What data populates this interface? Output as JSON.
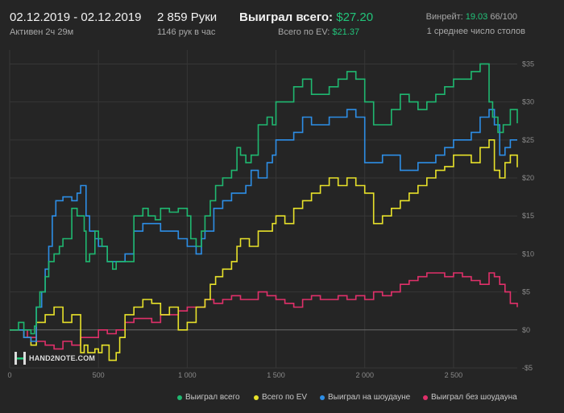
{
  "header": {
    "date_range": "02.12.2019 - 02.12.2019",
    "active": "Активен 2ч 29м",
    "hands_count": "2 859",
    "hands_label": "Руки",
    "hands_per_hour": "1146 рук в час",
    "won_total_label": "Выиграл всего:",
    "won_total_value": "$27.20",
    "ev_label": "Всего по EV:",
    "ev_value": "$21.37",
    "winrate_label": "Винрейт:",
    "winrate_value": "19.03",
    "winrate_suffix": "66/100",
    "avg_tables": "1 среднее число столов"
  },
  "logo": {
    "text": "HAND2NOTE.COM"
  },
  "colors": {
    "won_total": "#1fb870",
    "ev": "#e8e22a",
    "showdown": "#2d8ee6",
    "non_showdown": "#e0306a"
  },
  "chart_data": {
    "type": "line",
    "xlabel": "",
    "ylabel": "",
    "xlim": [
      0,
      2859
    ],
    "ylim": [
      -5,
      36
    ],
    "x_ticks": [
      0,
      500,
      1000,
      1500,
      2000,
      2500
    ],
    "x_tick_labels": [
      "0",
      "500",
      "1 000",
      "1 500",
      "2 000",
      "2 500"
    ],
    "y_ticks": [
      35,
      30,
      25,
      20,
      15,
      10,
      5,
      0,
      -5
    ],
    "y_tick_labels": [
      "$35",
      "$30",
      "$25",
      "$20",
      "$15",
      "$10",
      "$5",
      "$0",
      "-$5"
    ],
    "grid": true,
    "legend_position": "bottom-right",
    "series": [
      {
        "name": "Выиграл всего",
        "color": "#1fb870",
        "points": [
          [
            0,
            0
          ],
          [
            30,
            0
          ],
          [
            50,
            1
          ],
          [
            80,
            0
          ],
          [
            120,
            -0.5
          ],
          [
            140,
            0.5
          ],
          [
            150,
            3
          ],
          [
            170,
            5
          ],
          [
            200,
            7
          ],
          [
            220,
            9
          ],
          [
            250,
            10
          ],
          [
            280,
            11
          ],
          [
            300,
            12
          ],
          [
            350,
            16
          ],
          [
            380,
            15
          ],
          [
            420,
            13
          ],
          [
            430,
            9
          ],
          [
            450,
            10
          ],
          [
            480,
            13
          ],
          [
            500,
            12
          ],
          [
            520,
            11
          ],
          [
            550,
            9
          ],
          [
            580,
            8
          ],
          [
            600,
            9
          ],
          [
            650,
            9
          ],
          [
            700,
            15
          ],
          [
            750,
            16
          ],
          [
            780,
            15
          ],
          [
            820,
            14.5
          ],
          [
            850,
            16
          ],
          [
            900,
            15.5
          ],
          [
            950,
            16
          ],
          [
            1000,
            15
          ],
          [
            1020,
            12
          ],
          [
            1050,
            11
          ],
          [
            1080,
            13
          ],
          [
            1100,
            15
          ],
          [
            1130,
            17
          ],
          [
            1160,
            19
          ],
          [
            1200,
            20
          ],
          [
            1250,
            21
          ],
          [
            1280,
            24
          ],
          [
            1300,
            23
          ],
          [
            1330,
            22
          ],
          [
            1360,
            23
          ],
          [
            1400,
            27
          ],
          [
            1450,
            28
          ],
          [
            1480,
            27
          ],
          [
            1500,
            30
          ],
          [
            1550,
            30
          ],
          [
            1600,
            32
          ],
          [
            1650,
            33
          ],
          [
            1700,
            31
          ],
          [
            1750,
            31
          ],
          [
            1800,
            32
          ],
          [
            1850,
            33
          ],
          [
            1900,
            34
          ],
          [
            1950,
            33
          ],
          [
            2000,
            30
          ],
          [
            2050,
            27
          ],
          [
            2100,
            27
          ],
          [
            2150,
            29
          ],
          [
            2200,
            31
          ],
          [
            2250,
            30
          ],
          [
            2300,
            29
          ],
          [
            2350,
            30
          ],
          [
            2400,
            31
          ],
          [
            2450,
            32
          ],
          [
            2500,
            33
          ],
          [
            2550,
            33
          ],
          [
            2600,
            34
          ],
          [
            2650,
            35
          ],
          [
            2700,
            30
          ],
          [
            2720,
            28
          ],
          [
            2750,
            26
          ],
          [
            2780,
            27
          ],
          [
            2820,
            29
          ],
          [
            2859,
            27.2
          ]
        ]
      },
      {
        "name": "Всего по EV",
        "color": "#e8e22a",
        "points": [
          [
            0,
            0
          ],
          [
            50,
            0
          ],
          [
            80,
            -1
          ],
          [
            120,
            -2
          ],
          [
            150,
            1
          ],
          [
            200,
            2
          ],
          [
            250,
            3
          ],
          [
            300,
            1
          ],
          [
            350,
            2
          ],
          [
            380,
            2
          ],
          [
            400,
            -3
          ],
          [
            420,
            -2
          ],
          [
            440,
            -3
          ],
          [
            480,
            -2.5
          ],
          [
            500,
            -3
          ],
          [
            520,
            -2
          ],
          [
            560,
            -4
          ],
          [
            600,
            -3
          ],
          [
            620,
            -1
          ],
          [
            650,
            2
          ],
          [
            700,
            3
          ],
          [
            750,
            4
          ],
          [
            800,
            3.5
          ],
          [
            850,
            2
          ],
          [
            900,
            3
          ],
          [
            950,
            0
          ],
          [
            1000,
            1
          ],
          [
            1050,
            3
          ],
          [
            1100,
            4
          ],
          [
            1130,
            6
          ],
          [
            1160,
            7
          ],
          [
            1200,
            8
          ],
          [
            1250,
            9
          ],
          [
            1280,
            11
          ],
          [
            1300,
            12
          ],
          [
            1350,
            11
          ],
          [
            1400,
            13
          ],
          [
            1450,
            13
          ],
          [
            1480,
            14
          ],
          [
            1500,
            15
          ],
          [
            1550,
            14
          ],
          [
            1600,
            16
          ],
          [
            1650,
            17
          ],
          [
            1700,
            18
          ],
          [
            1750,
            19
          ],
          [
            1800,
            20
          ],
          [
            1850,
            19
          ],
          [
            1900,
            20
          ],
          [
            1950,
            19
          ],
          [
            2000,
            18
          ],
          [
            2050,
            14
          ],
          [
            2100,
            15
          ],
          [
            2150,
            16
          ],
          [
            2200,
            17
          ],
          [
            2250,
            18
          ],
          [
            2300,
            19
          ],
          [
            2350,
            20
          ],
          [
            2400,
            21
          ],
          [
            2450,
            21.5
          ],
          [
            2500,
            23
          ],
          [
            2550,
            23
          ],
          [
            2600,
            22
          ],
          [
            2650,
            24
          ],
          [
            2700,
            25
          ],
          [
            2730,
            21
          ],
          [
            2760,
            20
          ],
          [
            2790,
            22
          ],
          [
            2820,
            23
          ],
          [
            2859,
            21.4
          ]
        ]
      },
      {
        "name": "Выиграл на шоудауне",
        "color": "#2d8ee6",
        "points": [
          [
            0,
            0
          ],
          [
            50,
            0
          ],
          [
            80,
            -1
          ],
          [
            120,
            -1.5
          ],
          [
            150,
            3
          ],
          [
            180,
            5
          ],
          [
            200,
            8
          ],
          [
            220,
            11
          ],
          [
            240,
            15
          ],
          [
            260,
            17
          ],
          [
            300,
            17.5
          ],
          [
            350,
            17
          ],
          [
            380,
            18
          ],
          [
            400,
            19
          ],
          [
            430,
            15
          ],
          [
            450,
            13
          ],
          [
            480,
            12
          ],
          [
            500,
            11
          ],
          [
            550,
            9
          ],
          [
            600,
            9
          ],
          [
            650,
            10
          ],
          [
            700,
            13
          ],
          [
            750,
            14
          ],
          [
            800,
            14
          ],
          [
            850,
            13
          ],
          [
            900,
            13
          ],
          [
            950,
            12
          ],
          [
            1000,
            11
          ],
          [
            1050,
            10
          ],
          [
            1080,
            12
          ],
          [
            1100,
            13
          ],
          [
            1150,
            16
          ],
          [
            1200,
            17
          ],
          [
            1250,
            18
          ],
          [
            1300,
            18
          ],
          [
            1330,
            19
          ],
          [
            1360,
            21
          ],
          [
            1400,
            20
          ],
          [
            1450,
            22
          ],
          [
            1480,
            23
          ],
          [
            1500,
            25
          ],
          [
            1550,
            25
          ],
          [
            1600,
            26
          ],
          [
            1650,
            28
          ],
          [
            1700,
            27
          ],
          [
            1750,
            27
          ],
          [
            1800,
            28
          ],
          [
            1850,
            28
          ],
          [
            1900,
            29
          ],
          [
            1950,
            28
          ],
          [
            2000,
            22
          ],
          [
            2050,
            22
          ],
          [
            2100,
            23
          ],
          [
            2150,
            23
          ],
          [
            2200,
            21
          ],
          [
            2250,
            21
          ],
          [
            2300,
            22
          ],
          [
            2350,
            22
          ],
          [
            2400,
            23
          ],
          [
            2450,
            24
          ],
          [
            2500,
            25
          ],
          [
            2550,
            25
          ],
          [
            2600,
            26
          ],
          [
            2650,
            28
          ],
          [
            2700,
            29
          ],
          [
            2730,
            27
          ],
          [
            2760,
            23
          ],
          [
            2790,
            24
          ],
          [
            2820,
            25
          ],
          [
            2859,
            25
          ]
        ]
      },
      {
        "name": "Выиграл без шоудауна",
        "color": "#e0306a",
        "points": [
          [
            0,
            0
          ],
          [
            50,
            0
          ],
          [
            100,
            -1
          ],
          [
            150,
            -1.5
          ],
          [
            200,
            -2
          ],
          [
            250,
            -2.5
          ],
          [
            300,
            -1.5
          ],
          [
            350,
            -2
          ],
          [
            400,
            -1
          ],
          [
            450,
            -1
          ],
          [
            500,
            0
          ],
          [
            550,
            -0.5
          ],
          [
            600,
            0
          ],
          [
            650,
            1
          ],
          [
            700,
            1.5
          ],
          [
            750,
            1.5
          ],
          [
            800,
            1
          ],
          [
            850,
            2
          ],
          [
            900,
            2
          ],
          [
            950,
            2.5
          ],
          [
            1000,
            3
          ],
          [
            1050,
            3
          ],
          [
            1100,
            4
          ],
          [
            1150,
            3.5
          ],
          [
            1200,
            4
          ],
          [
            1250,
            4.5
          ],
          [
            1300,
            4
          ],
          [
            1350,
            4
          ],
          [
            1400,
            5
          ],
          [
            1450,
            4.5
          ],
          [
            1500,
            4
          ],
          [
            1550,
            3.5
          ],
          [
            1600,
            3
          ],
          [
            1650,
            4
          ],
          [
            1700,
            4.5
          ],
          [
            1750,
            4
          ],
          [
            1800,
            4
          ],
          [
            1850,
            4.5
          ],
          [
            1900,
            4
          ],
          [
            1950,
            4.5
          ],
          [
            2000,
            4
          ],
          [
            2050,
            5
          ],
          [
            2100,
            4.5
          ],
          [
            2150,
            5
          ],
          [
            2200,
            6
          ],
          [
            2250,
            6.5
          ],
          [
            2300,
            7
          ],
          [
            2350,
            7.5
          ],
          [
            2400,
            7.5
          ],
          [
            2450,
            7
          ],
          [
            2500,
            7.5
          ],
          [
            2550,
            7
          ],
          [
            2600,
            6.5
          ],
          [
            2650,
            6
          ],
          [
            2700,
            7.5
          ],
          [
            2730,
            7
          ],
          [
            2760,
            6
          ],
          [
            2790,
            5
          ],
          [
            2820,
            3.5
          ],
          [
            2859,
            3
          ]
        ]
      }
    ]
  }
}
